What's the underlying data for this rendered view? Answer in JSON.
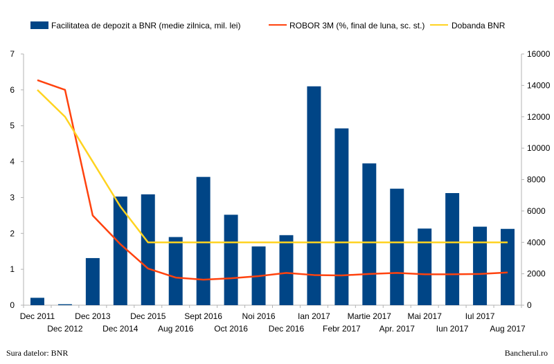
{
  "chart_data": {
    "type": "bar+line",
    "categories": [
      "Dec 2011",
      "Dec 2012",
      "Dec 2013",
      "Dec 2014",
      "Dec 2015",
      "Aug 2016",
      "Sept 2016",
      "Oct 2016",
      "Noi 2016",
      "Dec 2016",
      "Ian 2017",
      "Febr 2017",
      "Martie 2017",
      "Apr. 2017",
      "Mai 2017",
      "Iun 2017",
      "Iul 2017",
      "Aug 2017"
    ],
    "series": [
      {
        "name": "Facilitatea de depozit a BNR (medie zilnica, mil. lei)",
        "type": "bar",
        "axis": "right",
        "color": "#004586",
        "values": [
          470,
          60,
          3000,
          6920,
          7060,
          4340,
          8170,
          5760,
          3740,
          4460,
          13940,
          11260,
          9030,
          7420,
          4880,
          7140,
          5000,
          4860
        ]
      },
      {
        "name": "ROBOR 3M (%, final de luna, sc. st.)",
        "type": "line",
        "axis": "left",
        "color": "#ff420e",
        "values": [
          6.27,
          6.0,
          2.5,
          1.7,
          1.02,
          0.77,
          0.71,
          0.75,
          0.81,
          0.9,
          0.84,
          0.83,
          0.87,
          0.9,
          0.86,
          0.86,
          0.87,
          0.91
        ]
      },
      {
        "name": "Dobanda BNR",
        "type": "line",
        "axis": "left",
        "color": "#ffd320",
        "values": [
          6.0,
          5.25,
          4.0,
          2.75,
          1.75,
          1.75,
          1.75,
          1.75,
          1.75,
          1.75,
          1.75,
          1.75,
          1.75,
          1.75,
          1.75,
          1.75,
          1.75,
          1.75
        ]
      }
    ],
    "y_left": {
      "min": 0,
      "max": 7,
      "step": 1,
      "ticks": [
        "0",
        "1",
        "2",
        "3",
        "4",
        "5",
        "6",
        "7"
      ]
    },
    "y_right": {
      "min": 0,
      "max": 16000,
      "step": 2000,
      "ticks": [
        "0",
        "2000",
        "4000",
        "6000",
        "8000",
        "10000",
        "12000",
        "14000",
        "16000"
      ]
    },
    "legend_position": "top",
    "grid": false
  },
  "footer": {
    "source": "Sura datelor: BNR",
    "brand": "Bancherul.ro"
  }
}
